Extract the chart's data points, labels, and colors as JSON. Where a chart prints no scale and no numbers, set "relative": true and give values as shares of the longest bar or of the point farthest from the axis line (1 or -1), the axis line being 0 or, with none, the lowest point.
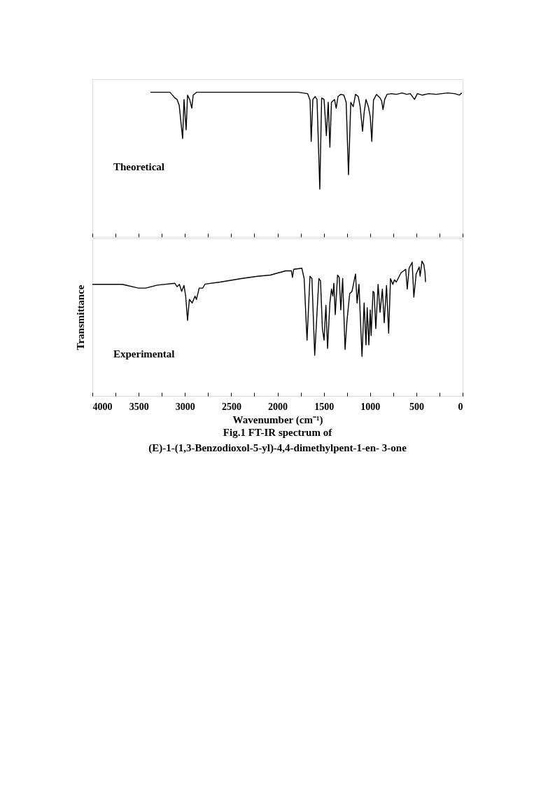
{
  "chart_data": [
    {
      "type": "line",
      "relative": true,
      "xlim": [
        4000,
        0
      ],
      "tick_labels": false,
      "grid": false,
      "line_style": "solid",
      "xticks": [
        4000,
        {
          "value": 3750,
          "label": null
        },
        3500,
        {
          "value": 3250,
          "label": null
        },
        3000,
        {
          "value": 2750,
          "label": null
        },
        2500,
        {
          "value": 2250,
          "label": null
        },
        2000,
        {
          "value": 1750,
          "label": null
        },
        1500,
        {
          "value": 1250,
          "label": null
        },
        1000,
        {
          "value": 750,
          "label": null
        },
        500,
        {
          "value": 250,
          "label": null
        },
        0
      ],
      "annotations": [
        "Theoretical"
      ],
      "x": [
        3372,
        3161,
        3108,
        3085,
        3062,
        3025,
        3010,
        2987,
        2972,
        2949,
        2926,
        2911,
        2873,
        2798,
        1777,
        1674,
        1648,
        1636,
        1618,
        1593,
        1573,
        1543,
        1523,
        1497,
        1472,
        1452,
        1434,
        1417,
        1384,
        1366,
        1346,
        1316,
        1283,
        1258,
        1233,
        1208,
        1182,
        1157,
        1127,
        1107,
        1081,
        1064,
        1044,
        1018,
        998,
        981,
        963,
        930,
        892,
        875,
        860,
        842,
        817,
        766,
        716,
        653,
        603,
        565,
        520,
        489,
        439,
        363,
        288,
        162,
        86,
        36,
        10
      ],
      "series": [
        {
          "color": "#000000",
          "values": [
            1.0,
            1.0,
            0.96,
            0.95,
            0.91,
            0.68,
            0.95,
            0.74,
            0.98,
            0.95,
            0.89,
            0.98,
            1.0,
            1.0,
            1.0,
            0.99,
            0.945,
            0.66,
            0.95,
            0.97,
            0.95,
            0.33,
            0.96,
            0.95,
            0.7,
            0.93,
            0.62,
            0.93,
            0.95,
            0.89,
            0.97,
            0.985,
            0.98,
            0.93,
            0.43,
            0.93,
            0.9,
            0.985,
            0.97,
            0.9,
            0.73,
            0.86,
            0.95,
            0.9,
            0.83,
            0.66,
            0.945,
            0.985,
            0.96,
            0.94,
            0.88,
            0.95,
            0.985,
            0.99,
            0.985,
            0.995,
            0.985,
            0.99,
            0.95,
            0.99,
            0.98,
            0.99,
            0.985,
            0.995,
            0.99,
            0.98,
            0.995
          ]
        }
      ]
    },
    {
      "type": "line",
      "relative": true,
      "xlim": [
        4000,
        0
      ],
      "tick_labels": "x",
      "grid": false,
      "line_style": "solid",
      "xticks": [
        4000,
        {
          "value": 3750,
          "label": null
        },
        3500,
        {
          "value": 3250,
          "label": null
        },
        3000,
        {
          "value": 2750,
          "label": null
        },
        2500,
        {
          "value": 2250,
          "label": null
        },
        2000,
        {
          "value": 1750,
          "label": null
        },
        1500,
        {
          "value": 1250,
          "label": null
        },
        1000,
        {
          "value": 750,
          "label": null
        },
        500,
        {
          "value": 250,
          "label": null
        },
        0
      ],
      "xlabel": "Wavenumber (cm⁻¹)",
      "ylabel": "Transmittance",
      "annotations": [
        "Experimental",
        "Fig.1 FT-IR spectrum of",
        "(E)-1-(1,3-Benzodioxol-5-yl)-4,4-dimethylpent-1-en- 3-one"
      ],
      "x": [
        4000,
        3677,
        3501,
        3425,
        3299,
        3110,
        3085,
        3060,
        3035,
        3010,
        2992,
        2972,
        2952,
        2921,
        2891,
        2876,
        2846,
        2808,
        2783,
        2619,
        2392,
        2216,
        2077,
        1989,
        1913,
        1850,
        1838,
        1825,
        1737,
        1712,
        1681,
        1649,
        1628,
        1598,
        1553,
        1535,
        1515,
        1497,
        1477,
        1459,
        1434,
        1417,
        1402,
        1391,
        1376,
        1351,
        1333,
        1316,
        1296,
        1270,
        1250,
        1220,
        1195,
        1157,
        1140,
        1120,
        1087,
        1064,
        1044,
        1031,
        1013,
        998,
        988,
        968,
        956,
        938,
        913,
        892,
        867,
        847,
        822,
        799,
        779,
        754,
        736,
        716,
        666,
        615,
        598,
        578,
        545,
        527,
        502,
        469,
        459,
        439,
        419,
        406,
        401
      ],
      "series": [
        {
          "color": "#000000",
          "values": [
            0.828,
            0.828,
            0.8,
            0.8,
            0.822,
            0.836,
            0.81,
            0.828,
            0.776,
            0.82,
            0.741,
            0.56,
            0.716,
            0.69,
            0.741,
            0.716,
            0.8,
            0.8,
            0.83,
            0.845,
            0.871,
            0.888,
            0.897,
            0.914,
            0.928,
            0.928,
            0.88,
            0.94,
            0.948,
            0.871,
            0.414,
            0.888,
            0.871,
            0.302,
            0.871,
            0.853,
            0.5,
            0.414,
            0.673,
            0.353,
            0.69,
            0.793,
            0.741,
            0.836,
            0.604,
            0.897,
            0.88,
            0.638,
            0.871,
            0.345,
            0.552,
            0.759,
            0.776,
            0.905,
            0.69,
            0.828,
            0.293,
            0.69,
            0.379,
            0.655,
            0.379,
            0.638,
            0.448,
            0.776,
            0.767,
            0.5,
            0.828,
            0.621,
            0.793,
            0.543,
            0.819,
            0.466,
            0.871,
            0.828,
            0.862,
            0.845,
            0.914,
            0.94,
            0.793,
            0.948,
            0.992,
            0.733,
            0.905,
            0.957,
            0.888,
            1.0,
            0.974,
            0.914,
            0.845
          ]
        }
      ]
    }
  ]
}
